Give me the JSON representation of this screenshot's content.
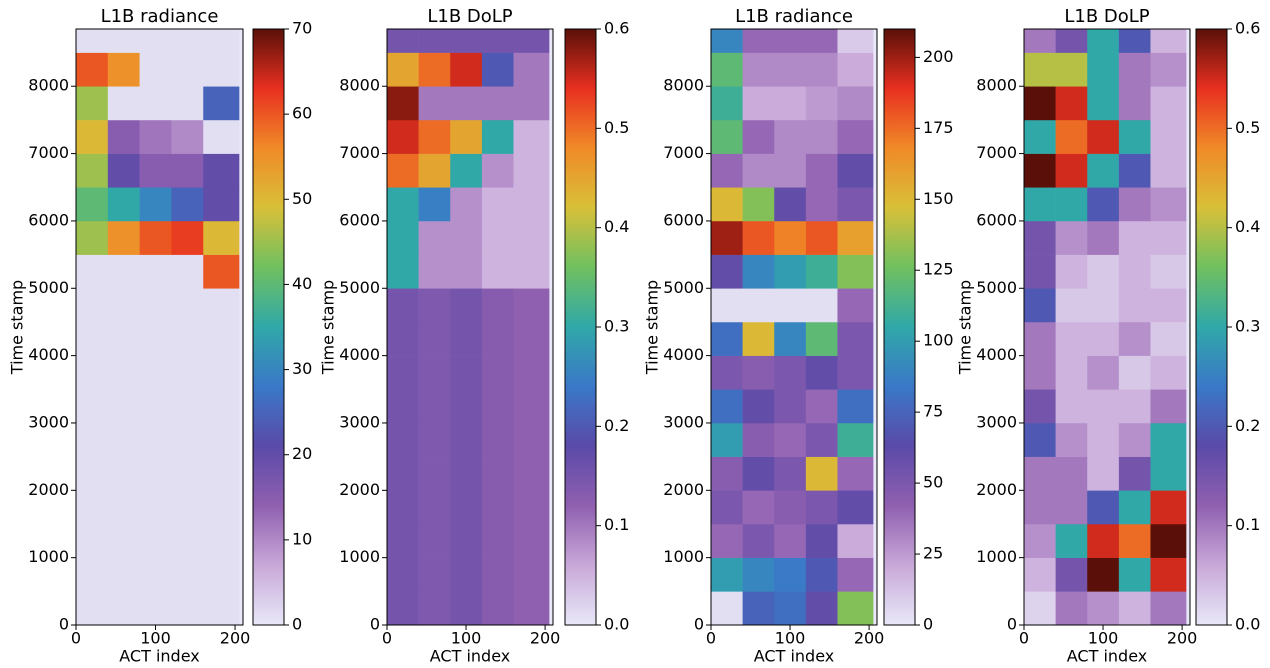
{
  "chart_data": [
    {
      "type": "heatmap",
      "title": "L1B radiance",
      "xlabel": "ACT index",
      "ylabel": "Time stamp",
      "xlim": [
        0,
        210
      ],
      "ylim": [
        0,
        8850
      ],
      "xticks": [
        0,
        100,
        200
      ],
      "yticks": [
        0,
        1000,
        2000,
        3000,
        4000,
        5000,
        6000,
        7000,
        8000
      ],
      "x": [
        0,
        40,
        80,
        120,
        160,
        205
      ],
      "y": [
        0,
        500,
        1000,
        1500,
        2000,
        2500,
        3000,
        3500,
        4000,
        4500,
        5000,
        5500,
        6000,
        6500,
        7000,
        7500,
        8000,
        8500,
        8850
      ],
      "clim": [
        0,
        70
      ],
      "cticks": [
        0,
        10,
        20,
        30,
        40,
        50,
        60,
        70
      ],
      "colormap": [
        "#e8e8f8",
        "#c8a8d8",
        "#9060b0",
        "#5a4aa8",
        "#3a78c8",
        "#30a8a8",
        "#70c060",
        "#d8c038",
        "#f08a28",
        "#e83020",
        "#5a1008"
      ],
      "values": [
        [
          1,
          1,
          1,
          1,
          1
        ],
        [
          1,
          1,
          1,
          1,
          1
        ],
        [
          1,
          1,
          1,
          1,
          1
        ],
        [
          1,
          1,
          1,
          1,
          1
        ],
        [
          1,
          1,
          1,
          1,
          1
        ],
        [
          1,
          1,
          1,
          1,
          1
        ],
        [
          1,
          1,
          1,
          1,
          1
        ],
        [
          1,
          1,
          1,
          1,
          1
        ],
        [
          1,
          1,
          1,
          1,
          1
        ],
        [
          1,
          1,
          1,
          1,
          1
        ],
        [
          1,
          1,
          1,
          1,
          60
        ],
        [
          45,
          55,
          60,
          62,
          50
        ],
        [
          40,
          35,
          30,
          25,
          20
        ],
        [
          45,
          20,
          15,
          15,
          20
        ],
        [
          50,
          15,
          12,
          10,
          1
        ],
        [
          45,
          1,
          1,
          1,
          25
        ],
        [
          60,
          55,
          1,
          1,
          1
        ],
        [
          1,
          1,
          1,
          1,
          1
        ]
      ]
    },
    {
      "type": "heatmap",
      "title": "L1B DoLP",
      "xlabel": "ACT index",
      "ylabel": "Time stamp",
      "xlim": [
        0,
        210
      ],
      "ylim": [
        0,
        8850
      ],
      "xticks": [
        0,
        100,
        200
      ],
      "yticks": [
        0,
        1000,
        2000,
        3000,
        4000,
        5000,
        6000,
        7000,
        8000
      ],
      "x": [
        0,
        40,
        80,
        120,
        160,
        205
      ],
      "y": [
        0,
        500,
        1000,
        1500,
        2000,
        2500,
        3000,
        3500,
        4000,
        4500,
        5000,
        5500,
        6000,
        6500,
        7000,
        7500,
        8000,
        8500,
        8850
      ],
      "clim": [
        0,
        0.6
      ],
      "cticks": [
        {
          "value": 0,
          "label": "0.0"
        },
        0.1,
        0.2,
        0.3,
        0.4,
        0.5,
        0.6
      ],
      "colormap": [
        "#e8e8f8",
        "#c8a8d8",
        "#9060b0",
        "#5a4aa8",
        "#3a78c8",
        "#30a8a8",
        "#70c060",
        "#d8c038",
        "#f08a28",
        "#e83020",
        "#5a1008"
      ],
      "values": [
        [
          0.15,
          0.14,
          0.15,
          0.13,
          0.12
        ],
        [
          0.15,
          0.14,
          0.15,
          0.13,
          0.12
        ],
        [
          0.15,
          0.14,
          0.15,
          0.13,
          0.12
        ],
        [
          0.15,
          0.14,
          0.15,
          0.13,
          0.12
        ],
        [
          0.15,
          0.14,
          0.15,
          0.13,
          0.12
        ],
        [
          0.15,
          0.14,
          0.15,
          0.13,
          0.12
        ],
        [
          0.15,
          0.14,
          0.15,
          0.13,
          0.12
        ],
        [
          0.15,
          0.14,
          0.15,
          0.13,
          0.12
        ],
        [
          0.15,
          0.14,
          0.15,
          0.13,
          0.12
        ],
        [
          0.15,
          0.14,
          0.15,
          0.13,
          0.12
        ],
        [
          0.3,
          0.08,
          0.08,
          0.05,
          0.05
        ],
        [
          0.3,
          0.08,
          0.08,
          0.05,
          0.05
        ],
        [
          0.3,
          0.25,
          0.08,
          0.05,
          0.05
        ],
        [
          0.5,
          0.45,
          0.3,
          0.08,
          0.05
        ],
        [
          0.55,
          0.5,
          0.45,
          0.3,
          0.05
        ],
        [
          0.58,
          0.1,
          0.1,
          0.1,
          0.1
        ],
        [
          0.45,
          0.5,
          0.55,
          0.2,
          0.1
        ],
        [
          0.15,
          0.15,
          0.15,
          0.15,
          0.15
        ]
      ]
    },
    {
      "type": "heatmap",
      "title": "L1B radiance",
      "xlabel": "ACT index",
      "ylabel": "Time stamp",
      "xlim": [
        0,
        210
      ],
      "ylim": [
        0,
        8850
      ],
      "xticks": [
        0,
        100,
        200
      ],
      "yticks": [
        0,
        1000,
        2000,
        3000,
        4000,
        5000,
        6000,
        7000,
        8000
      ],
      "x": [
        0,
        40,
        80,
        120,
        160,
        205
      ],
      "y": [
        0,
        500,
        1000,
        1500,
        2000,
        2500,
        3000,
        3500,
        4000,
        4500,
        5000,
        5500,
        6000,
        6500,
        7000,
        7500,
        8000,
        8500,
        8850
      ],
      "clim": [
        0,
        210
      ],
      "cticks": [
        0,
        25,
        50,
        75,
        100,
        125,
        150,
        175,
        200
      ],
      "colormap": [
        "#e8e8f8",
        "#c8a8d8",
        "#9060b0",
        "#5a4aa8",
        "#3a78c8",
        "#30a8a8",
        "#70c060",
        "#d8c038",
        "#f08a28",
        "#e83020",
        "#5a1008"
      ],
      "values": [
        [
          3,
          75,
          80,
          60,
          130
        ],
        [
          100,
          90,
          85,
          70,
          40
        ],
        [
          40,
          50,
          40,
          60,
          20
        ],
        [
          50,
          40,
          45,
          50,
          60
        ],
        [
          45,
          60,
          50,
          150,
          40
        ],
        [
          100,
          45,
          40,
          50,
          110
        ],
        [
          80,
          60,
          50,
          40,
          80
        ],
        [
          50,
          45,
          50,
          60,
          50
        ],
        [
          80,
          150,
          90,
          120,
          50
        ],
        [
          3,
          3,
          3,
          3,
          40
        ],
        [
          60,
          90,
          100,
          110,
          130
        ],
        [
          200,
          180,
          170,
          180,
          160
        ],
        [
          150,
          130,
          60,
          40,
          50
        ],
        [
          40,
          30,
          30,
          40,
          60
        ],
        [
          120,
          40,
          30,
          30,
          40
        ],
        [
          110,
          20,
          20,
          25,
          30
        ],
        [
          120,
          30,
          30,
          30,
          20
        ],
        [
          90,
          40,
          40,
          40,
          10
        ]
      ]
    },
    {
      "type": "heatmap",
      "title": "L1B DoLP",
      "xlabel": "ACT index",
      "ylabel": "Time stamp",
      "xlim": [
        0,
        210
      ],
      "ylim": [
        0,
        8850
      ],
      "xticks": [
        0,
        100,
        200
      ],
      "yticks": [
        0,
        1000,
        2000,
        3000,
        4000,
        5000,
        6000,
        7000,
        8000
      ],
      "x": [
        0,
        40,
        80,
        120,
        160,
        205
      ],
      "y": [
        0,
        500,
        1000,
        1500,
        2000,
        2500,
        3000,
        3500,
        4000,
        4500,
        5000,
        5500,
        6000,
        6500,
        7000,
        7500,
        8000,
        8500,
        8850
      ],
      "clim": [
        0,
        0.6
      ],
      "cticks": [
        {
          "value": 0,
          "label": "0.0"
        },
        0.1,
        0.2,
        0.3,
        0.4,
        0.5,
        0.6
      ],
      "colormap": [
        "#e8e8f8",
        "#c8a8d8",
        "#9060b0",
        "#5a4aa8",
        "#3a78c8",
        "#30a8a8",
        "#70c060",
        "#d8c038",
        "#f08a28",
        "#e83020",
        "#5a1008"
      ],
      "values": [
        [
          0.02,
          0.1,
          0.08,
          0.05,
          0.1
        ],
        [
          0.05,
          0.15,
          0.6,
          0.3,
          0.55
        ],
        [
          0.08,
          0.3,
          0.55,
          0.5,
          0.6
        ],
        [
          0.1,
          0.1,
          0.2,
          0.3,
          0.55
        ],
        [
          0.1,
          0.1,
          0.05,
          0.15,
          0.3
        ],
        [
          0.2,
          0.08,
          0.05,
          0.08,
          0.3
        ],
        [
          0.15,
          0.05,
          0.05,
          0.05,
          0.1
        ],
        [
          0.1,
          0.05,
          0.08,
          0.03,
          0.05
        ],
        [
          0.1,
          0.05,
          0.05,
          0.08,
          0.03
        ],
        [
          0.2,
          0.03,
          0.03,
          0.05,
          0.05
        ],
        [
          0.15,
          0.05,
          0.03,
          0.05,
          0.03
        ],
        [
          0.15,
          0.08,
          0.1,
          0.05,
          0.05
        ],
        [
          0.3,
          0.3,
          0.2,
          0.1,
          0.08
        ],
        [
          0.6,
          0.55,
          0.3,
          0.2,
          0.05
        ],
        [
          0.3,
          0.5,
          0.55,
          0.3,
          0.05
        ],
        [
          0.6,
          0.55,
          0.3,
          0.1,
          0.05
        ],
        [
          0.4,
          0.4,
          0.3,
          0.1,
          0.08
        ],
        [
          0.1,
          0.15,
          0.3,
          0.2,
          0.05
        ]
      ]
    }
  ]
}
